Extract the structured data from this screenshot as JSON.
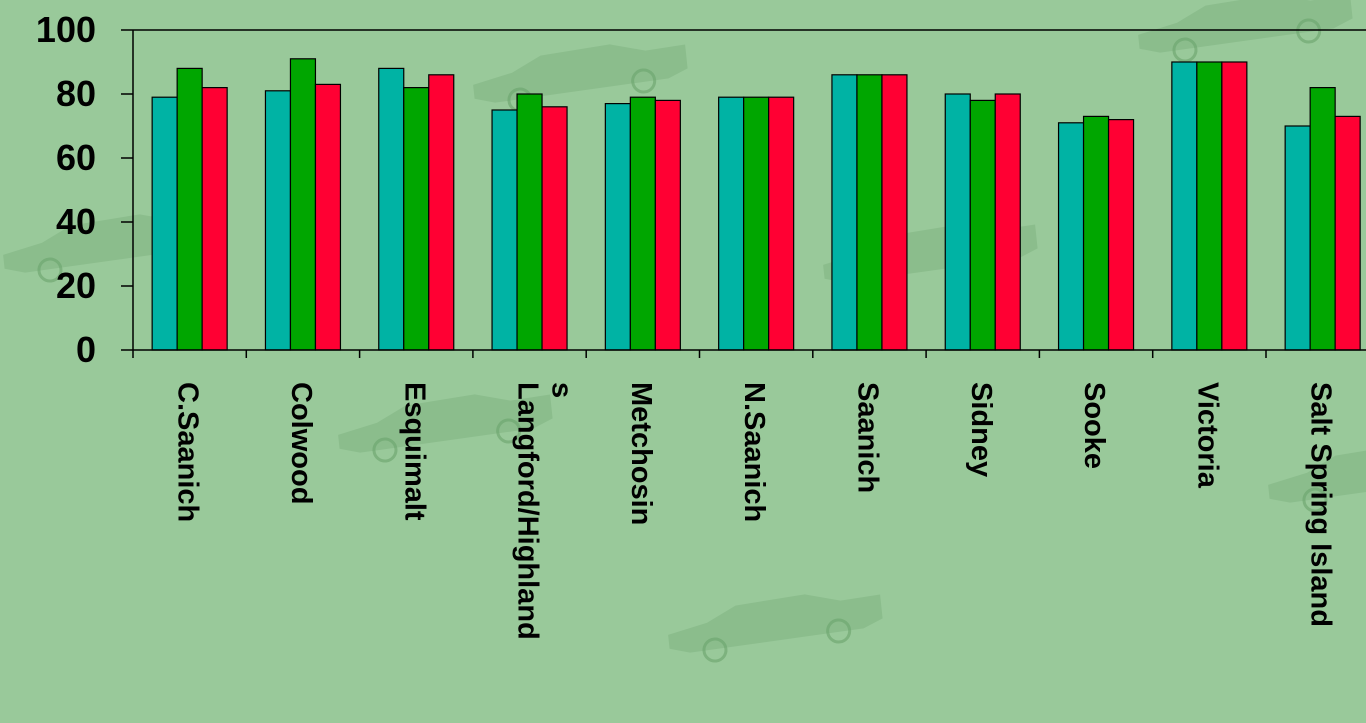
{
  "chart_data": {
    "type": "bar",
    "categories": [
      "C.Saanich",
      "Colwood",
      "Esquimalt",
      "Langford/Highlands",
      "Metchosin",
      "N.Saanich",
      "Saanich",
      "Sidney",
      "Sooke",
      "Victoria",
      "Salt Spring Island"
    ],
    "category_label_lines": [
      [
        "C.Saanich"
      ],
      [
        "Colwood"
      ],
      [
        "Esquimalt"
      ],
      [
        "Langford/Highland",
        "s"
      ],
      [
        "Metchosin"
      ],
      [
        "N.Saanich"
      ],
      [
        "Saanich"
      ],
      [
        "Sidney"
      ],
      [
        "Sooke"
      ],
      [
        "Victoria"
      ],
      [
        "Salt Spring Island"
      ]
    ],
    "series": [
      {
        "values": [
          79,
          81,
          88,
          75,
          77,
          79,
          86,
          80,
          71,
          90,
          70
        ],
        "color": "#00b3a4"
      },
      {
        "values": [
          88,
          91,
          82,
          80,
          79,
          79,
          86,
          78,
          73,
          90,
          82
        ],
        "color": "#00a600"
      },
      {
        "values": [
          82,
          83,
          86,
          76,
          78,
          79,
          86,
          80,
          72,
          90,
          73
        ],
        "color": "#ff0033"
      }
    ],
    "ylim": [
      0,
      100
    ],
    "yticks": [
      0,
      20,
      40,
      60,
      80,
      100
    ],
    "grid": false,
    "legend": "none",
    "background_color": "#99c99a"
  }
}
